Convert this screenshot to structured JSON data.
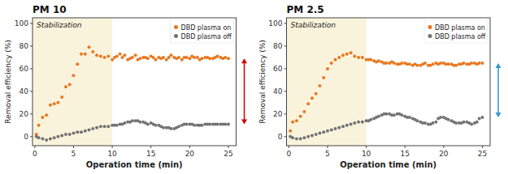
{
  "chart_data": [
    {
      "type": "scatter",
      "title": "PM 10",
      "x_label": "Operation time (min)",
      "y_label": "Removal efficiency (%)",
      "xlim": [
        -0.3,
        26
      ],
      "ylim": [
        -8,
        105
      ],
      "xticks": [
        0,
        5,
        10,
        15,
        20,
        25
      ],
      "yticks": [
        0,
        20,
        40,
        60,
        80,
        100
      ],
      "legend": "upper right",
      "highlight": {
        "x": [
          -0.3,
          10
        ],
        "label": "Stabilization",
        "color": "#FAF3DC"
      },
      "arrow_color": "#CC0000",
      "series": [
        {
          "name": "DBD plasma on",
          "color": "#E87820",
          "x": [
            0.2,
            0.5,
            1.0,
            1.5,
            2.0,
            2.5,
            3.0,
            3.5,
            4.0,
            4.5,
            5.0,
            5.5,
            6.0,
            6.5,
            7.0,
            7.5,
            8.0,
            8.5,
            9.0,
            9.5,
            10.0,
            10.3,
            10.6,
            11.0,
            11.3,
            11.6,
            12.0,
            12.3,
            12.6,
            13.0,
            13.3,
            13.6,
            14.0,
            14.3,
            14.6,
            15.0,
            15.3,
            15.6,
            16.0,
            16.3,
            16.6,
            17.0,
            17.3,
            17.6,
            18.0,
            18.3,
            18.6,
            19.0,
            19.3,
            19.6,
            20.0,
            20.3,
            20.6,
            21.0,
            21.3,
            21.6,
            22.0,
            22.3,
            22.6,
            23.0,
            23.3,
            23.6,
            24.0,
            24.3,
            24.6,
            25.0
          ],
          "values": [
            2,
            10,
            17,
            19,
            28,
            29,
            30,
            35,
            44,
            46,
            54,
            64,
            73,
            73,
            79,
            75,
            72,
            71,
            70,
            71,
            68,
            70,
            71,
            73,
            70,
            72,
            68,
            69,
            70,
            72,
            68,
            69,
            70,
            70,
            69,
            71,
            70,
            68,
            70,
            69,
            70,
            68,
            70,
            72,
            70,
            69,
            70,
            68,
            70,
            70,
            69,
            71,
            70,
            70,
            68,
            69,
            70,
            70,
            69,
            69,
            70,
            71,
            70,
            69,
            70,
            69
          ]
        },
        {
          "name": "DBD plasma off",
          "color": "#737373",
          "x": [
            0.2,
            0.5,
            1.0,
            1.5,
            2.0,
            2.5,
            3.0,
            3.5,
            4.0,
            4.5,
            5.0,
            5.5,
            6.0,
            6.5,
            7.0,
            7.5,
            8.0,
            8.5,
            9.0,
            9.5,
            10.0,
            10.3,
            10.6,
            11.0,
            11.3,
            11.6,
            12.0,
            12.3,
            12.6,
            13.0,
            13.3,
            13.6,
            14.0,
            14.3,
            14.6,
            15.0,
            15.3,
            15.6,
            16.0,
            16.3,
            16.6,
            17.0,
            17.3,
            17.6,
            18.0,
            18.3,
            18.6,
            19.0,
            19.3,
            19.6,
            20.0,
            20.3,
            20.6,
            21.0,
            21.3,
            21.6,
            22.0,
            22.3,
            22.6,
            23.0,
            23.3,
            23.6,
            24.0,
            24.3,
            24.6,
            25.0
          ],
          "values": [
            0,
            -1,
            -2,
            -3,
            -2,
            -1,
            0,
            1,
            2,
            2,
            3,
            4,
            4,
            5,
            6,
            7,
            8,
            9,
            9,
            9,
            10,
            10,
            10,
            11,
            11,
            12,
            13,
            13,
            14,
            14,
            14,
            13,
            13,
            12,
            11,
            12,
            11,
            10,
            10,
            9,
            8,
            8,
            8,
            7,
            7,
            8,
            9,
            10,
            11,
            11,
            11,
            11,
            10,
            10,
            10,
            10,
            11,
            11,
            11,
            11,
            11,
            11,
            11,
            11,
            11,
            11
          ]
        }
      ]
    },
    {
      "type": "scatter",
      "title": "PM 2.5",
      "x_label": "Operation time (min)",
      "y_label": "Removal efficiency (%)",
      "xlim": [
        -0.3,
        26
      ],
      "ylim": [
        -8,
        105
      ],
      "xticks": [
        0,
        5,
        10,
        15,
        20,
        25
      ],
      "yticks": [
        0,
        20,
        40,
        60,
        80,
        100
      ],
      "legend": "upper right",
      "highlight": {
        "x": [
          -0.3,
          10
        ],
        "label": "Stabilization",
        "color": "#FAF3DC"
      },
      "arrow_color": "#3399CC",
      "series": [
        {
          "name": "DBD plasma on",
          "color": "#E87820",
          "x": [
            0.2,
            0.5,
            1.0,
            1.5,
            2.0,
            2.5,
            3.0,
            3.5,
            4.0,
            4.5,
            5.0,
            5.5,
            6.0,
            6.5,
            7.0,
            7.5,
            8.0,
            8.5,
            9.0,
            9.5,
            10.0,
            10.3,
            10.6,
            11.0,
            11.3,
            11.6,
            12.0,
            12.3,
            12.6,
            13.0,
            13.3,
            13.6,
            14.0,
            14.3,
            14.6,
            15.0,
            15.3,
            15.6,
            16.0,
            16.3,
            16.6,
            17.0,
            17.3,
            17.6,
            18.0,
            18.3,
            18.6,
            19.0,
            19.3,
            19.6,
            20.0,
            20.3,
            20.6,
            21.0,
            21.3,
            21.6,
            22.0,
            22.3,
            22.6,
            23.0,
            23.3,
            23.6,
            24.0,
            24.3,
            24.6,
            25.0
          ],
          "values": [
            5,
            13,
            14,
            18,
            22,
            29,
            34,
            38,
            45,
            52,
            60,
            65,
            68,
            70,
            72,
            73,
            74,
            71,
            70,
            70,
            68,
            68,
            68,
            67,
            66,
            67,
            66,
            65,
            65,
            65,
            66,
            65,
            64,
            64,
            65,
            65,
            64,
            64,
            63,
            64,
            63,
            63,
            64,
            65,
            63,
            63,
            64,
            65,
            64,
            65,
            65,
            64,
            64,
            64,
            63,
            63,
            64,
            64,
            65,
            64,
            64,
            65,
            65,
            64,
            65,
            65
          ]
        },
        {
          "name": "DBD plasma off",
          "color": "#737373",
          "x": [
            0.2,
            0.5,
            1.0,
            1.5,
            2.0,
            2.5,
            3.0,
            3.5,
            4.0,
            4.5,
            5.0,
            5.5,
            6.0,
            6.5,
            7.0,
            7.5,
            8.0,
            8.5,
            9.0,
            9.5,
            10.0,
            10.3,
            10.6,
            11.0,
            11.3,
            11.6,
            12.0,
            12.3,
            12.6,
            13.0,
            13.3,
            13.6,
            14.0,
            14.3,
            14.6,
            15.0,
            15.3,
            15.6,
            16.0,
            16.3,
            16.6,
            17.0,
            17.3,
            17.6,
            18.0,
            18.3,
            18.6,
            19.0,
            19.3,
            19.6,
            20.0,
            20.3,
            20.6,
            21.0,
            21.3,
            21.6,
            22.0,
            22.3,
            22.6,
            23.0,
            23.3,
            23.6,
            24.0,
            24.3,
            24.6,
            25.0
          ],
          "values": [
            0,
            -1,
            -2,
            -2,
            -1,
            0,
            1,
            2,
            3,
            4,
            5,
            6,
            7,
            8,
            9,
            10,
            11,
            12,
            13,
            13,
            14,
            14,
            15,
            16,
            17,
            18,
            19,
            20,
            20,
            20,
            19,
            19,
            20,
            20,
            19,
            18,
            17,
            17,
            16,
            15,
            14,
            13,
            12,
            12,
            11,
            11,
            12,
            13,
            16,
            17,
            17,
            16,
            15,
            14,
            13,
            12,
            12,
            12,
            13,
            13,
            12,
            11,
            12,
            13,
            16,
            17
          ]
        }
      ]
    }
  ]
}
